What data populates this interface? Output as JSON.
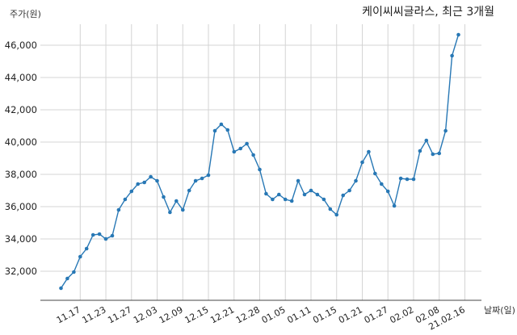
{
  "chart_data": {
    "type": "line",
    "title": "케이씨씨글라스, 최근 3개월",
    "ylabel": "주가(원)",
    "xlabel": "날짜(일)",
    "ylim": [
      30200,
      47300
    ],
    "yticks": [
      32000,
      34000,
      36000,
      38000,
      40000,
      42000,
      44000,
      46000
    ],
    "ytick_labels": [
      "32,000",
      "34,000",
      "36,000",
      "38,000",
      "40,000",
      "42,000",
      "44,000",
      "46,000"
    ],
    "xtick_labels": [
      "11.17",
      "11.23",
      "11.27",
      "12.03",
      "12.09",
      "12.15",
      "12.21",
      "12.28",
      "01.05",
      "01.11",
      "01.15",
      "01.21",
      "01.27",
      "02.02",
      "02.08",
      "21.02.16"
    ],
    "xtick_indices": [
      3,
      7,
      11,
      15,
      19,
      23,
      27,
      31,
      35,
      39,
      43,
      47,
      51,
      55,
      59,
      63
    ],
    "grid": true,
    "line_color": "#2878b5",
    "values": [
      30950,
      31550,
      31950,
      32900,
      33400,
      34250,
      34300,
      34000,
      34200,
      35800,
      36450,
      36950,
      37400,
      37500,
      37850,
      37600,
      36600,
      35650,
      36350,
      35800,
      37000,
      37600,
      37750,
      37950,
      40700,
      41100,
      40750,
      39400,
      39600,
      39900,
      39200,
      38300,
      36800,
      36450,
      36750,
      36450,
      36350,
      37600,
      36750,
      37000,
      36750,
      36450,
      35850,
      35500,
      36700,
      37000,
      37600,
      38750,
      39400,
      38050,
      37400,
      36950,
      36050,
      37750,
      37700,
      37700,
      39450,
      40100,
      39250,
      39300,
      40700,
      45350,
      46650
    ]
  }
}
